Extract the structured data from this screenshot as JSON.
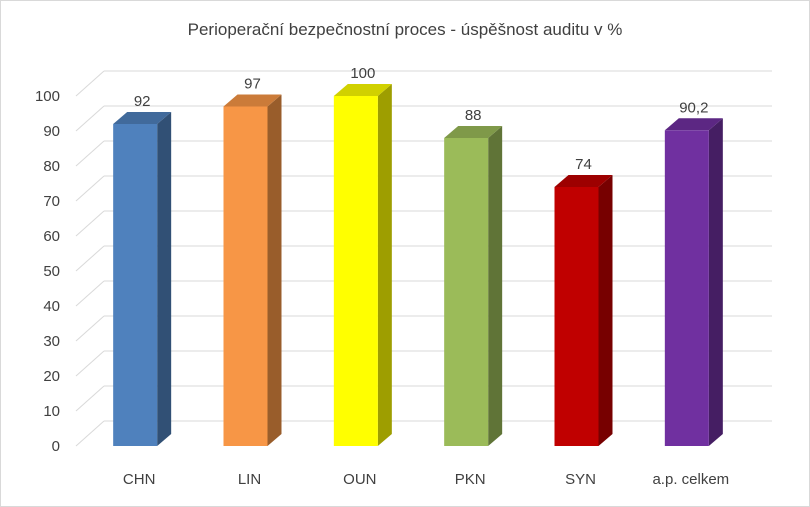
{
  "chart_data": {
    "type": "bar",
    "title": "Perioperační bezpečnostní proces - úspěšnost auditu v %",
    "categories": [
      "CHN",
      "LIN",
      "OUN",
      "PKN",
      "SYN",
      "a.p. celkem"
    ],
    "values": [
      92,
      97,
      100,
      88,
      74,
      90.2
    ],
    "data_labels": [
      "92",
      "97",
      "100",
      "88",
      "74",
      "90,2"
    ],
    "colors": [
      "#4f81bd",
      "#f79646",
      "#ffff00",
      "#9bbb59",
      "#c00000",
      "#7030a0"
    ],
    "ylim": [
      0,
      100
    ],
    "yticks": [
      0,
      10,
      20,
      30,
      40,
      50,
      60,
      70,
      80,
      90,
      100
    ],
    "grid": true,
    "legend": "none",
    "style": "3d-column"
  }
}
